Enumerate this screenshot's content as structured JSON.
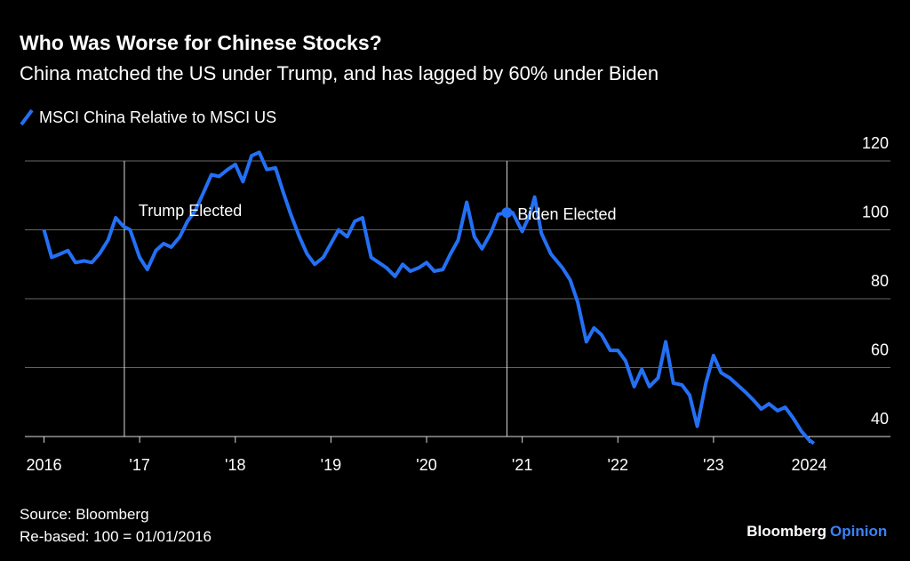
{
  "chart_data": {
    "type": "line",
    "title": "Who Was Worse for Chinese Stocks?",
    "subtitle": "China matched the US under Trump, and has lagged by 60% under Biden",
    "source": "Source: Bloomberg",
    "note": "Re-based: 100 = 01/01/2016",
    "brand": "Bloomberg",
    "brand_suffix": "Opinion",
    "xlim": [
      2015.8,
      2024.85
    ],
    "ylim": [
      40,
      120
    ],
    "yticks": [
      40,
      60,
      80,
      100,
      120
    ],
    "xticks": [
      {
        "value": 2016,
        "label": "2016"
      },
      {
        "value": 2017,
        "label": "'17"
      },
      {
        "value": 2018,
        "label": "'18"
      },
      {
        "value": 2019,
        "label": "'19"
      },
      {
        "value": 2020,
        "label": "'20"
      },
      {
        "value": 2021,
        "label": "'21"
      },
      {
        "value": 2022,
        "label": "'22"
      },
      {
        "value": 2023,
        "label": "'23"
      },
      {
        "value": 2024,
        "label": "2024"
      }
    ],
    "grid": true,
    "annotations": [
      {
        "x": 2016.84,
        "label": "Trump Elected"
      },
      {
        "x": 2020.84,
        "y": 105,
        "label": "Biden Elected"
      }
    ],
    "series": [
      {
        "name": "MSCI China Relative to MSCI US",
        "color": "#2470f5",
        "x": [
          2016.0,
          2016.08,
          2016.17,
          2016.25,
          2016.33,
          2016.42,
          2016.5,
          2016.58,
          2016.67,
          2016.75,
          2016.83,
          2016.9,
          2017.0,
          2017.08,
          2017.17,
          2017.25,
          2017.33,
          2017.42,
          2017.5,
          2017.58,
          2017.67,
          2017.75,
          2017.83,
          2017.92,
          2018.0,
          2018.08,
          2018.17,
          2018.25,
          2018.33,
          2018.42,
          2018.5,
          2018.58,
          2018.67,
          2018.75,
          2018.83,
          2018.92,
          2019.0,
          2019.08,
          2019.17,
          2019.25,
          2019.33,
          2019.42,
          2019.5,
          2019.58,
          2019.67,
          2019.75,
          2019.83,
          2019.92,
          2020.0,
          2020.08,
          2020.17,
          2020.25,
          2020.33,
          2020.42,
          2020.5,
          2020.58,
          2020.67,
          2020.75,
          2020.84,
          2020.9,
          2021.0,
          2021.08,
          2021.13,
          2021.2,
          2021.3,
          2021.42,
          2021.5,
          2021.58,
          2021.67,
          2021.75,
          2021.83,
          2021.92,
          2022.0,
          2022.08,
          2022.17,
          2022.25,
          2022.33,
          2022.42,
          2022.5,
          2022.58,
          2022.67,
          2022.75,
          2022.83,
          2022.92,
          2023.0,
          2023.08,
          2023.17,
          2023.33,
          2023.42,
          2023.5,
          2023.58,
          2023.67,
          2023.75,
          2023.83,
          2023.92,
          2024.0,
          2024.05
        ],
        "values": [
          100,
          92,
          93,
          94,
          90.5,
          91,
          90.5,
          93,
          97,
          103.5,
          101,
          100,
          92,
          88.5,
          94,
          96,
          95,
          98,
          102.5,
          105.5,
          111,
          116,
          115.5,
          117.5,
          119,
          114,
          121.5,
          122.5,
          117.5,
          118,
          111,
          104.5,
          98,
          93,
          90,
          92,
          96,
          100,
          98,
          102.5,
          103.5,
          92,
          90.5,
          89,
          86.5,
          90,
          88,
          89,
          90.5,
          88,
          88.5,
          93,
          97,
          108,
          98,
          94.5,
          99,
          104.5,
          105,
          105,
          99.5,
          104.5,
          109.5,
          99,
          93,
          89,
          85.5,
          79,
          67.5,
          71.5,
          69.5,
          65,
          65,
          62,
          54.5,
          59.5,
          54.5,
          57,
          67.5,
          55.5,
          55,
          52,
          43,
          55.5,
          63.5,
          58.5,
          57,
          53,
          50.5,
          48,
          49.5,
          47.5,
          48.5,
          45.5,
          41.5,
          39,
          38
        ]
      }
    ]
  }
}
